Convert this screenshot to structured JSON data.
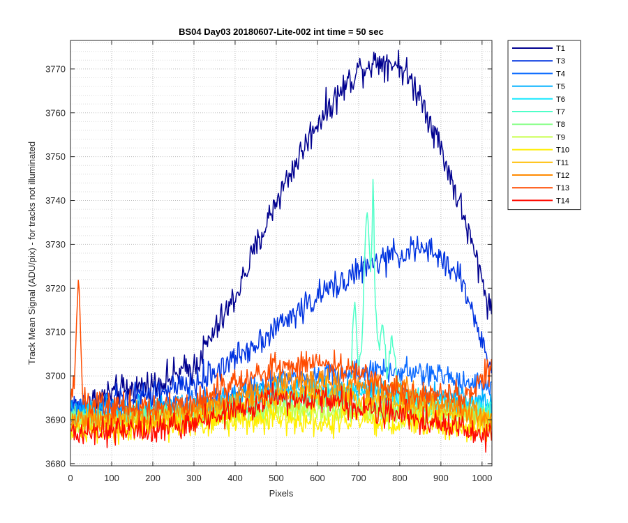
{
  "chart_data": {
    "type": "line",
    "title": "BS04 Day03 20180607-Lite-002 int time = 50 sec",
    "xlabel": "Pixels",
    "ylabel": "Track Mean Signal (ADU/pix) - for tracks not illuminated",
    "xlim": [
      0,
      1024
    ],
    "ylim": [
      3679.5,
      3776.5
    ],
    "xticks": [
      0,
      100,
      200,
      300,
      400,
      500,
      600,
      700,
      800,
      900,
      1000
    ],
    "yticks": [
      3680,
      3690,
      3700,
      3710,
      3720,
      3730,
      3740,
      3750,
      3760,
      3770
    ],
    "ytick_minor_step": 2,
    "grid": true,
    "legend_placement": "outside-top-right",
    "series": [
      {
        "name": "T1",
        "color": "#00008f",
        "x": [
          0,
          100,
          200,
          300,
          400,
          500,
          600,
          700,
          750,
          800,
          850,
          900,
          950,
          1000,
          1024
        ],
        "y": [
          3692,
          3696,
          3698,
          3702,
          3718,
          3740,
          3758,
          3770,
          3772,
          3771,
          3764,
          3752,
          3738,
          3722,
          3714
        ],
        "noise": 1.8
      },
      {
        "name": "T3",
        "color": "#0033e0",
        "x": [
          0,
          100,
          200,
          300,
          400,
          500,
          600,
          700,
          800,
          850,
          900,
          950,
          1000,
          1024
        ],
        "y": [
          3692,
          3694,
          3696,
          3698,
          3704,
          3711,
          3718,
          3724,
          3728,
          3729,
          3727,
          3722,
          3708,
          3700
        ],
        "noise": 1.6
      },
      {
        "name": "T4",
        "color": "#0a6aff",
        "x": [
          0,
          100,
          200,
          300,
          400,
          500,
          600,
          700,
          800,
          900,
          1000,
          1024
        ],
        "y": [
          3691,
          3692,
          3692,
          3694,
          3696,
          3699,
          3700,
          3701,
          3701,
          3700,
          3698,
          3698
        ],
        "noise": 1.4
      },
      {
        "name": "T5",
        "color": "#00b0ff",
        "x": [
          0,
          100,
          200,
          300,
          400,
          500,
          600,
          700,
          800,
          900,
          1000,
          1024
        ],
        "y": [
          3692,
          3692,
          3693,
          3693,
          3695,
          3697,
          3697,
          3697,
          3696,
          3695,
          3694,
          3693
        ],
        "noise": 1.4
      },
      {
        "name": "T6",
        "color": "#14e8ff",
        "x": [
          0,
          100,
          200,
          300,
          400,
          500,
          600,
          700,
          800,
          900,
          1000,
          1024
        ],
        "y": [
          3691,
          3691,
          3692,
          3692,
          3694,
          3696,
          3696,
          3696,
          3695,
          3694,
          3693,
          3692
        ],
        "noise": 1.4
      },
      {
        "name": "T7",
        "color": "#4fffc8",
        "x": [
          0,
          100,
          200,
          300,
          400,
          500,
          600,
          680,
          690,
          700,
          710,
          720,
          730,
          736,
          740,
          750,
          760,
          770,
          780,
          800,
          900,
          1000,
          1024
        ],
        "y": [
          3691,
          3691,
          3691,
          3692,
          3693,
          3695,
          3695,
          3695,
          3718,
          3700,
          3712,
          3740,
          3722,
          3748,
          3715,
          3705,
          3712,
          3700,
          3710,
          3695,
          3693,
          3692,
          3691
        ],
        "noise": 1.2
      },
      {
        "name": "T8",
        "color": "#8cff8c",
        "x": [
          0,
          100,
          200,
          300,
          400,
          500,
          600,
          700,
          800,
          900,
          1000,
          1024
        ],
        "y": [
          3690,
          3690,
          3691,
          3691,
          3692,
          3693,
          3693,
          3693,
          3692,
          3692,
          3691,
          3691
        ],
        "noise": 1.3
      },
      {
        "name": "T9",
        "color": "#c8ff4a",
        "x": [
          0,
          100,
          200,
          300,
          400,
          500,
          600,
          700,
          800,
          900,
          1000,
          1024
        ],
        "y": [
          3689,
          3689,
          3690,
          3690,
          3691,
          3692,
          3692,
          3692,
          3691,
          3691,
          3690,
          3690
        ],
        "noise": 1.3
      },
      {
        "name": "T10",
        "color": "#ffee00",
        "x": [
          0,
          100,
          200,
          300,
          400,
          500,
          600,
          700,
          800,
          900,
          1000,
          1024
        ],
        "y": [
          3688,
          3688,
          3689,
          3689,
          3690,
          3690,
          3690,
          3690,
          3689,
          3689,
          3688,
          3688
        ],
        "noise": 1.6
      },
      {
        "name": "T11",
        "color": "#ffbe00",
        "x": [
          0,
          100,
          200,
          300,
          400,
          500,
          600,
          700,
          800,
          900,
          1000,
          1024
        ],
        "y": [
          3689,
          3690,
          3690,
          3691,
          3693,
          3695,
          3696,
          3695,
          3694,
          3692,
          3690,
          3690
        ],
        "noise": 1.6
      },
      {
        "name": "T12",
        "color": "#ff8a00",
        "x": [
          0,
          100,
          200,
          300,
          400,
          500,
          600,
          700,
          800,
          900,
          1000,
          1024
        ],
        "y": [
          3690,
          3691,
          3691,
          3692,
          3695,
          3698,
          3699,
          3698,
          3697,
          3694,
          3691,
          3690
        ],
        "noise": 1.6
      },
      {
        "name": "T13",
        "color": "#ff4c00",
        "x": [
          0,
          10,
          18,
          22,
          30,
          100,
          200,
          300,
          400,
          500,
          600,
          700,
          760,
          800,
          900,
          950,
          1000,
          1024
        ],
        "y": [
          3694,
          3700,
          3721,
          3716,
          3694,
          3693,
          3693,
          3694,
          3698,
          3702,
          3703,
          3701,
          3698,
          3696,
          3696,
          3695,
          3699,
          3702
        ],
        "noise": 1.6
      },
      {
        "name": "T14",
        "color": "#ff0a00",
        "x": [
          0,
          100,
          200,
          300,
          400,
          500,
          600,
          700,
          800,
          900,
          1000,
          1024
        ],
        "y": [
          3687,
          3687,
          3688,
          3689,
          3692,
          3695,
          3695,
          3693,
          3691,
          3689,
          3687,
          3686
        ],
        "noise": 1.6
      }
    ]
  }
}
